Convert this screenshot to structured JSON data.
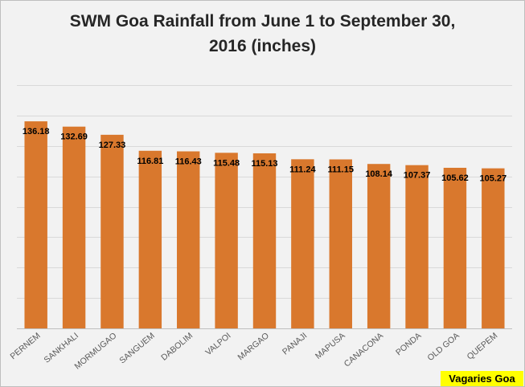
{
  "chart_data": {
    "type": "bar",
    "title_lines": [
      "SWM Goa Rainfall from June 1 to September 30,",
      "2016 (inches)"
    ],
    "categories": [
      "PERNEM",
      "SANKHALI",
      "MORMUGAO",
      "SANGUEM",
      "DABOLIM",
      "VALPOI",
      "MARGAO",
      "PANAJI",
      "MAPUSA",
      "CANACONA",
      "PONDA",
      "OLD GOA",
      "QUEPEM"
    ],
    "values": [
      136.18,
      132.69,
      127.33,
      116.81,
      116.43,
      115.48,
      115.13,
      111.24,
      111.15,
      108.14,
      107.37,
      105.62,
      105.27
    ],
    "value_labels": [
      "136.18",
      "132.69",
      "127.33",
      "116.81",
      "116.43",
      "115.48",
      "115.13",
      "111.24",
      "111.15",
      "108.14",
      "107.37",
      "105.62",
      "105.27"
    ],
    "ylim": [
      0,
      160
    ],
    "grid": true,
    "bar_color": "#d9782d",
    "xlabel": "",
    "ylabel": ""
  },
  "watermark": "Vagaries Goa"
}
